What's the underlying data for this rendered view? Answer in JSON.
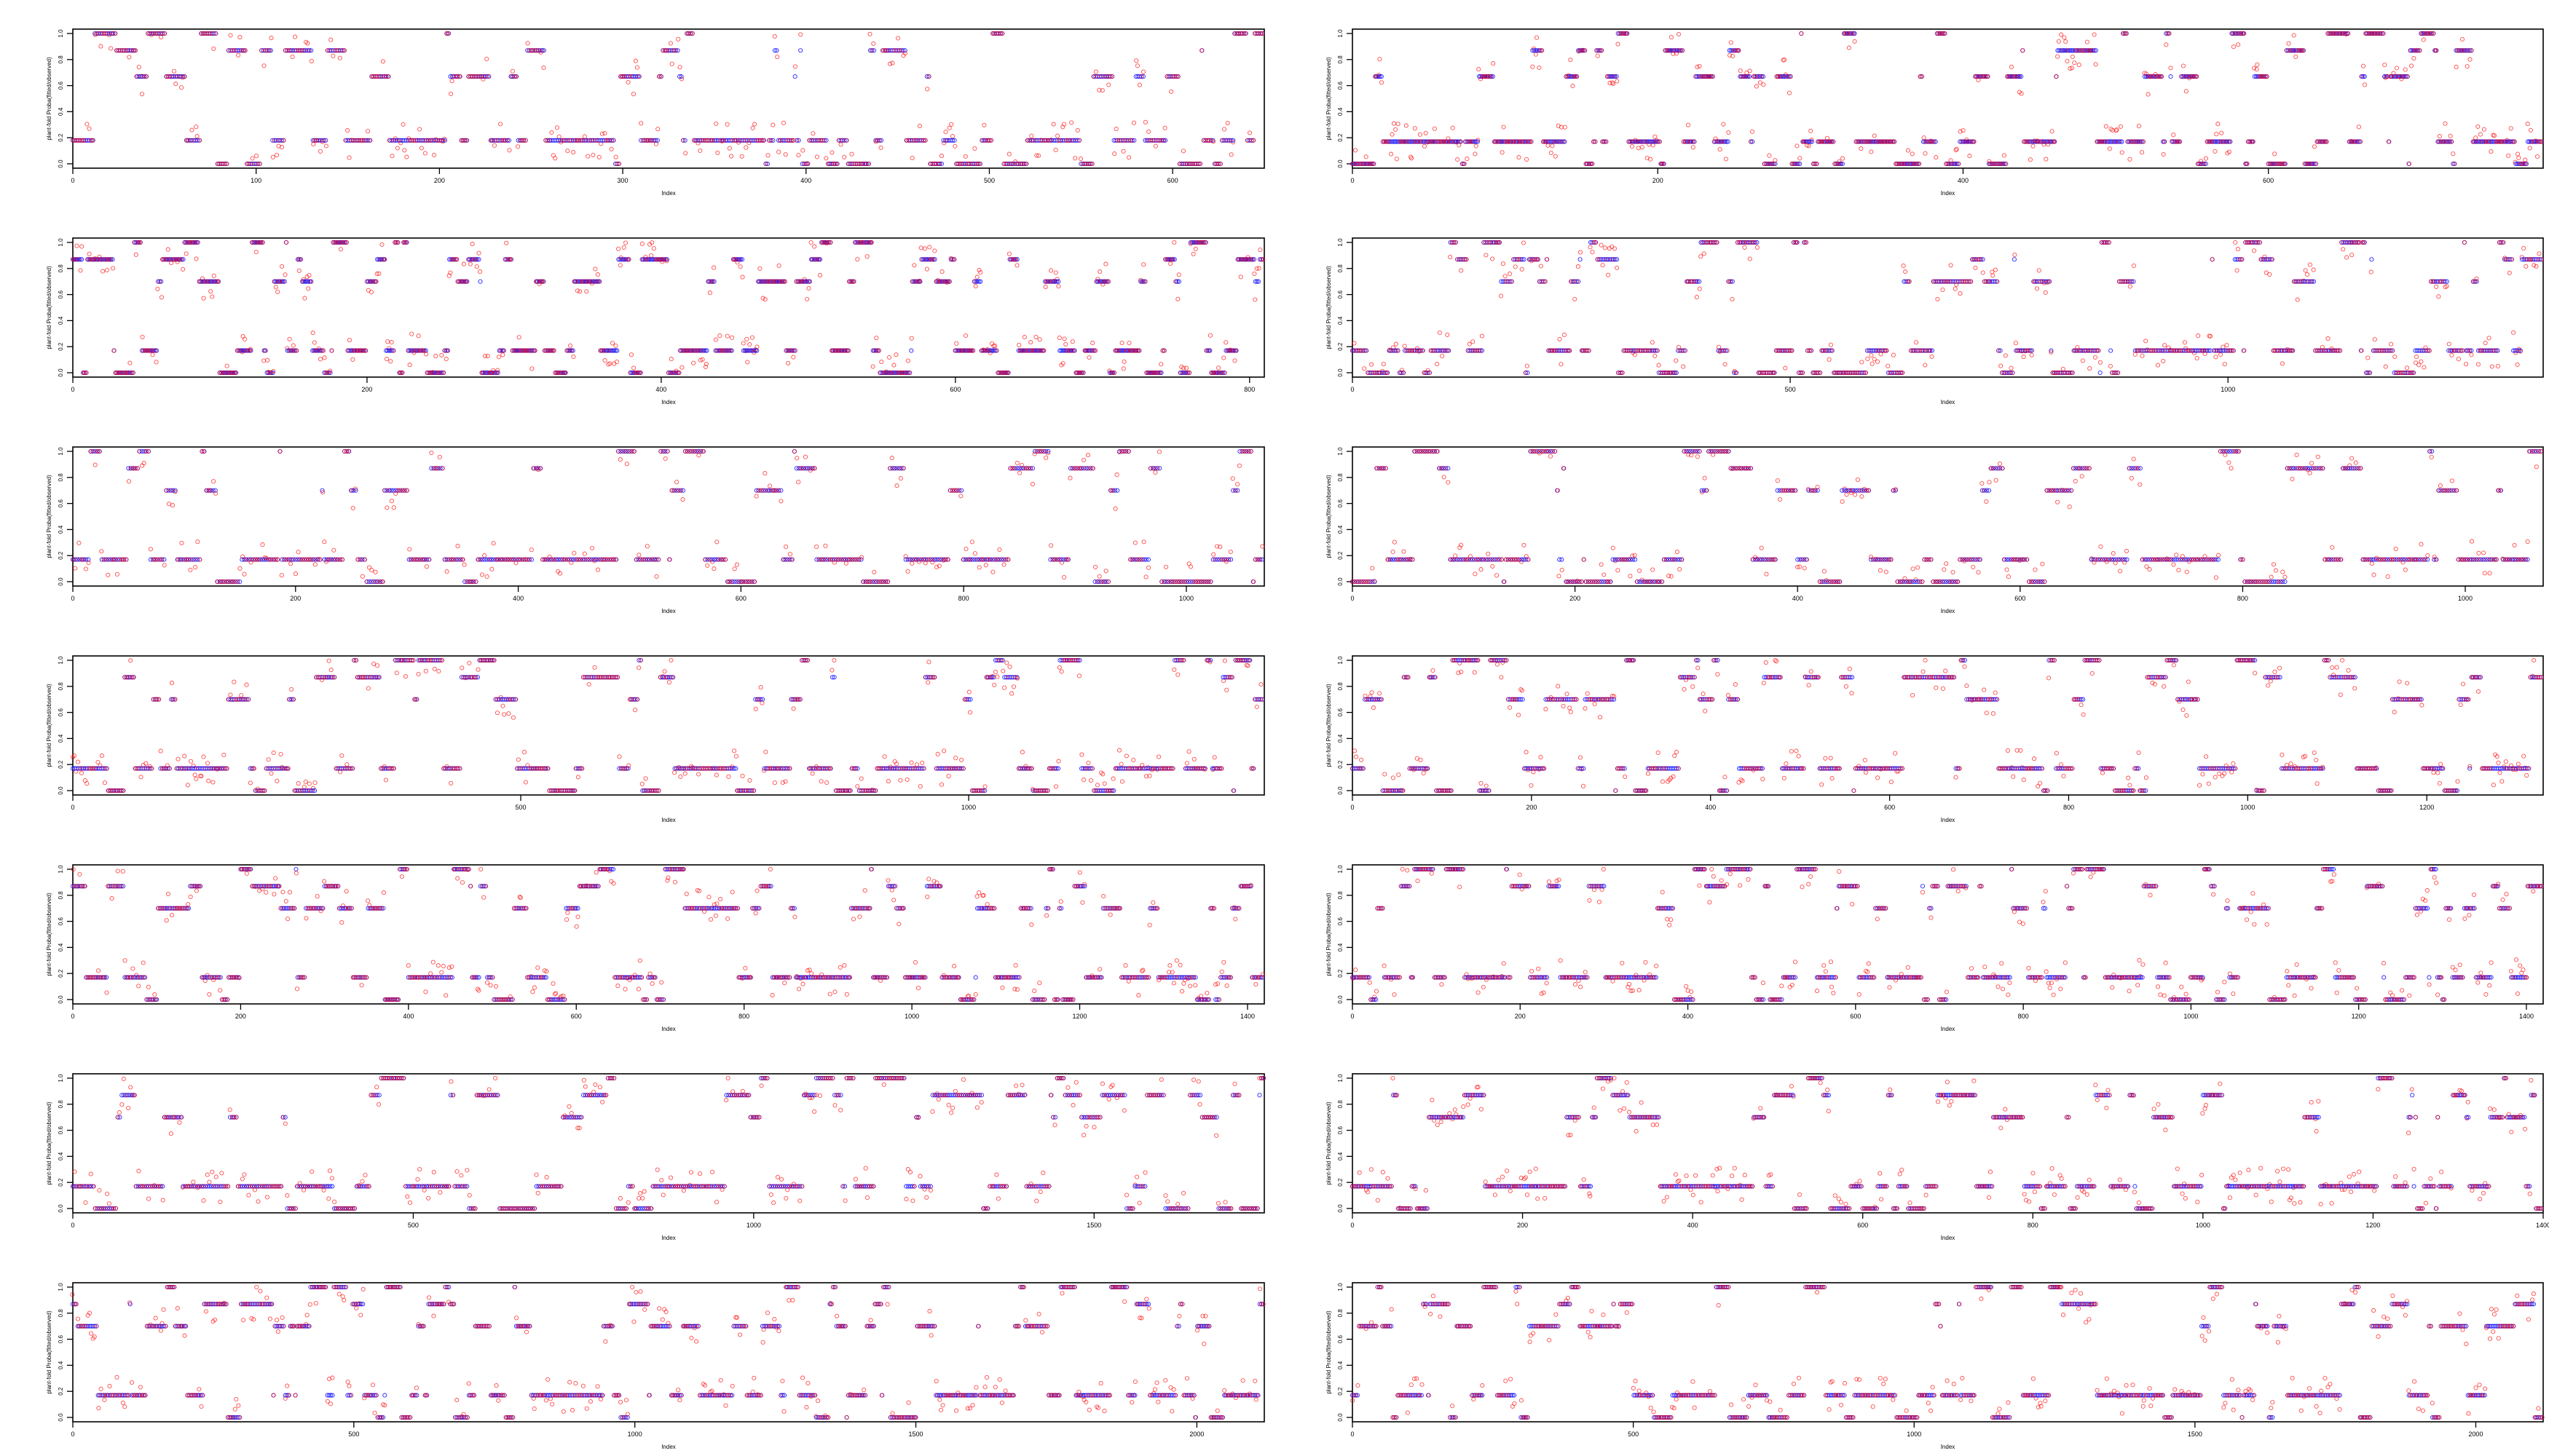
{
  "figure": {
    "panel_order": "row-major, 7 rows x 2 columns",
    "series_colors": {
      "observed": "#0000ff",
      "fitted": "#ff0000"
    },
    "point_style": "open circles"
  },
  "chart_data": [
    {
      "type": "scatter",
      "xlabel": "Index",
      "ylabel": "plant-fold Proba(fitted/observed)",
      "xlim": [
        0,
        650
      ],
      "xticks": [
        0,
        100,
        200,
        300,
        400,
        500,
        600
      ],
      "ylim": [
        0,
        1
      ],
      "yticks": [
        0.0,
        0.2,
        0.4,
        0.6,
        0.8,
        1.0
      ],
      "ytick_labels": [
        "0.0",
        "0.2",
        "0.4",
        "0.6",
        "0.8",
        "1.0"
      ],
      "grid": false,
      "legend": "none",
      "series": [
        {
          "color": "#0000ff",
          "levels": [
            0.0,
            0.18,
            0.67,
            0.87,
            1.0
          ]
        },
        {
          "color": "#ff0000",
          "levels": [
            0.0,
            0.18,
            0.67,
            0.87,
            1.0
          ]
        }
      ],
      "n": 650
    },
    {
      "type": "scatter",
      "xlabel": "Index",
      "ylabel": "plant-fold Proba(fitted/observed)",
      "xlim": [
        0,
        780
      ],
      "xticks": [
        0,
        200,
        400,
        600
      ],
      "ylim": [
        0,
        1
      ],
      "yticks": [
        0.0,
        0.2,
        0.4,
        0.6,
        0.8,
        1.0
      ],
      "ytick_labels": [
        "0.0",
        "0.2",
        "0.4",
        "0.6",
        "0.8",
        "1.0"
      ],
      "grid": false,
      "legend": "none",
      "series": [
        {
          "color": "#0000ff",
          "levels": [
            0.0,
            0.17,
            0.67,
            0.87,
            1.0
          ]
        },
        {
          "color": "#ff0000",
          "levels": [
            0.0,
            0.17,
            0.67,
            0.87,
            1.0
          ]
        }
      ],
      "n": 780
    },
    {
      "type": "scatter",
      "xlabel": "Index",
      "ylabel": "plant-fold Proba(fitted/observed)",
      "xlim": [
        0,
        810
      ],
      "xticks": [
        0,
        200,
        400,
        600,
        800
      ],
      "ylim": [
        0,
        1
      ],
      "yticks": [
        0.0,
        0.2,
        0.4,
        0.6,
        0.8,
        1.0
      ],
      "ytick_labels": [
        "0.0",
        "0.2",
        "0.4",
        "0.6",
        "0.8",
        "1.0"
      ],
      "grid": false,
      "legend": "none",
      "series": [
        {
          "color": "#0000ff",
          "levels": [
            0.0,
            0.17,
            0.7,
            0.87,
            1.0
          ]
        },
        {
          "color": "#ff0000",
          "levels": [
            0.0,
            0.17,
            0.7,
            0.87,
            1.0
          ]
        }
      ],
      "n": 810
    },
    {
      "type": "scatter",
      "xlabel": "Index",
      "ylabel": "plant-fold Proba(fitted/observed)",
      "xlim": [
        0,
        1360
      ],
      "xticks": [
        0,
        500,
        1000
      ],
      "ylim": [
        0,
        1
      ],
      "yticks": [
        0.0,
        0.2,
        0.4,
        0.6,
        0.8,
        1.0
      ],
      "ytick_labels": [
        "0.0",
        "0.2",
        "0.4",
        "0.6",
        "0.8",
        "1.0"
      ],
      "grid": false,
      "legend": "none",
      "series": [
        {
          "color": "#0000ff",
          "levels": [
            0.0,
            0.17,
            0.7,
            0.87,
            1.0
          ]
        },
        {
          "color": "#ff0000",
          "levels": [
            0.0,
            0.17,
            0.7,
            0.87,
            1.0
          ]
        }
      ],
      "n": 1360
    },
    {
      "type": "scatter",
      "xlabel": "Index",
      "ylabel": "plant-fold Proba(fitted/observed)",
      "xlim": [
        0,
        1070
      ],
      "xticks": [
        0,
        200,
        400,
        600,
        800,
        1000
      ],
      "ylim": [
        0,
        1
      ],
      "yticks": [
        0.0,
        0.2,
        0.4,
        0.6,
        0.8,
        1.0
      ],
      "ytick_labels": [
        "0.0",
        "0.2",
        "0.4",
        "0.6",
        "0.8",
        "1.0"
      ],
      "grid": false,
      "legend": "none",
      "series": [
        {
          "color": "#0000ff",
          "levels": [
            0.0,
            0.17,
            0.7,
            0.87,
            1.0
          ]
        },
        {
          "color": "#ff0000",
          "levels": [
            0.0,
            0.17,
            0.7,
            0.87,
            1.0
          ]
        }
      ],
      "n": 1070
    },
    {
      "type": "scatter",
      "xlabel": "Index",
      "ylabel": "plant-fold Proba(fitted/observed)",
      "xlim": [
        0,
        1070
      ],
      "xticks": [
        0,
        200,
        400,
        600,
        800,
        1000
      ],
      "ylim": [
        0,
        1
      ],
      "yticks": [
        0.0,
        0.2,
        0.4,
        0.6,
        0.8,
        1.0
      ],
      "ytick_labels": [
        "0.0",
        "0.2",
        "0.4",
        "0.6",
        "0.8",
        "1.0"
      ],
      "grid": false,
      "legend": "none",
      "series": [
        {
          "color": "#0000ff",
          "levels": [
            0.0,
            0.17,
            0.7,
            0.87,
            1.0
          ]
        },
        {
          "color": "#ff0000",
          "levels": [
            0.0,
            0.17,
            0.7,
            0.87,
            1.0
          ]
        }
      ],
      "n": 1070
    },
    {
      "type": "scatter",
      "xlabel": "Index",
      "ylabel": "plant-fold Proba(fitted/observed)",
      "xlim": [
        0,
        1330
      ],
      "xticks": [
        0,
        500,
        1000
      ],
      "ylim": [
        0,
        1
      ],
      "yticks": [
        0.0,
        0.2,
        0.4,
        0.6,
        0.8,
        1.0
      ],
      "ytick_labels": [
        "0.0",
        "0.2",
        "0.4",
        "0.6",
        "0.8",
        "1.0"
      ],
      "grid": false,
      "legend": "none",
      "series": [
        {
          "color": "#0000ff",
          "levels": [
            0.0,
            0.17,
            0.7,
            0.87,
            1.0
          ]
        },
        {
          "color": "#ff0000",
          "levels": [
            0.0,
            0.17,
            0.7,
            0.87,
            1.0
          ]
        }
      ],
      "n": 1330
    },
    {
      "type": "scatter",
      "xlabel": "Index",
      "ylabel": "plant-fold Proba(fitted/observed)",
      "xlim": [
        0,
        1330
      ],
      "xticks": [
        0,
        200,
        400,
        600,
        800,
        1000,
        1200
      ],
      "ylim": [
        0,
        1
      ],
      "yticks": [
        0.0,
        0.2,
        0.4,
        0.6,
        0.8,
        1.0
      ],
      "ytick_labels": [
        "0.0",
        "0.2",
        "0.4",
        "0.6",
        "0.8",
        "1.0"
      ],
      "grid": false,
      "legend": "none",
      "series": [
        {
          "color": "#0000ff",
          "levels": [
            0.0,
            0.17,
            0.7,
            0.87,
            1.0
          ]
        },
        {
          "color": "#ff0000",
          "levels": [
            0.0,
            0.17,
            0.7,
            0.87,
            1.0
          ]
        }
      ],
      "n": 1330
    },
    {
      "type": "scatter",
      "xlabel": "Index",
      "ylabel": "plant-fold Proba(fitted/observed)",
      "xlim": [
        0,
        1420
      ],
      "xticks": [
        0,
        200,
        400,
        600,
        800,
        1000,
        1200,
        1400
      ],
      "ylim": [
        0,
        1
      ],
      "yticks": [
        0.0,
        0.2,
        0.4,
        0.6,
        0.8,
        1.0
      ],
      "ytick_labels": [
        "0.0",
        "0.2",
        "0.4",
        "0.6",
        "0.8",
        "1.0"
      ],
      "grid": false,
      "legend": "none",
      "series": [
        {
          "color": "#0000ff",
          "levels": [
            0.0,
            0.17,
            0.7,
            0.87,
            1.0
          ]
        },
        {
          "color": "#ff0000",
          "levels": [
            0.0,
            0.17,
            0.7,
            0.87,
            1.0
          ]
        }
      ],
      "n": 1420
    },
    {
      "type": "scatter",
      "xlabel": "Index",
      "ylabel": "plant-fold Proba(fitted/observed)",
      "xlim": [
        0,
        1420
      ],
      "xticks": [
        0,
        200,
        400,
        600,
        800,
        1000,
        1200,
        1400
      ],
      "ylim": [
        0,
        1
      ],
      "yticks": [
        0.0,
        0.2,
        0.4,
        0.6,
        0.8,
        1.0
      ],
      "ytick_labels": [
        "0.0",
        "0.2",
        "0.4",
        "0.6",
        "0.8",
        "1.0"
      ],
      "grid": false,
      "legend": "none",
      "series": [
        {
          "color": "#0000ff",
          "levels": [
            0.0,
            0.17,
            0.7,
            0.87,
            1.0
          ]
        },
        {
          "color": "#ff0000",
          "levels": [
            0.0,
            0.17,
            0.7,
            0.87,
            1.0
          ]
        }
      ],
      "n": 1420
    },
    {
      "type": "scatter",
      "xlabel": "Index",
      "ylabel": "plant-fold Proba(fitted/observed)",
      "xlim": [
        0,
        1750
      ],
      "xticks": [
        0,
        500,
        1000,
        1500
      ],
      "ylim": [
        0,
        1
      ],
      "yticks": [
        0.0,
        0.2,
        0.4,
        0.6,
        0.8,
        1.0
      ],
      "ytick_labels": [
        "0.0",
        "0.2",
        "0.4",
        "0.6",
        "0.8",
        "1.0"
      ],
      "grid": false,
      "legend": "none",
      "series": [
        {
          "color": "#0000ff",
          "levels": [
            0.0,
            0.17,
            0.7,
            0.87,
            1.0
          ]
        },
        {
          "color": "#ff0000",
          "levels": [
            0.0,
            0.17,
            0.7,
            0.87,
            1.0
          ]
        }
      ],
      "n": 1750
    },
    {
      "type": "scatter",
      "xlabel": "Index",
      "ylabel": "plant-fold Proba(fitted/observed)",
      "xlim": [
        0,
        1400
      ],
      "xticks": [
        0,
        200,
        400,
        600,
        800,
        1000,
        1200,
        1400
      ],
      "ylim": [
        0,
        1
      ],
      "yticks": [
        0.0,
        0.2,
        0.4,
        0.6,
        0.8,
        1.0
      ],
      "ytick_labels": [
        "0.0",
        "0.2",
        "0.4",
        "0.6",
        "0.8",
        "1.0"
      ],
      "grid": false,
      "legend": "none",
      "series": [
        {
          "color": "#0000ff",
          "levels": [
            0.0,
            0.17,
            0.7,
            0.87,
            1.0
          ]
        },
        {
          "color": "#ff0000",
          "levels": [
            0.0,
            0.17,
            0.7,
            0.87,
            1.0
          ]
        }
      ],
      "n": 1400
    },
    {
      "type": "scatter",
      "xlabel": "Index",
      "ylabel": "plant-fold Proba(fitted/observed)",
      "xlim": [
        0,
        2120
      ],
      "xticks": [
        0,
        500,
        1000,
        1500,
        2000
      ],
      "ylim": [
        0,
        1
      ],
      "yticks": [
        0.0,
        0.2,
        0.4,
        0.6,
        0.8,
        1.0
      ],
      "ytick_labels": [
        "0.0",
        "0.2",
        "0.4",
        "0.6",
        "0.8",
        "1.0"
      ],
      "grid": false,
      "legend": "none",
      "series": [
        {
          "color": "#0000ff",
          "levels": [
            0.0,
            0.17,
            0.7,
            0.87,
            1.0
          ]
        },
        {
          "color": "#ff0000",
          "levels": [
            0.0,
            0.17,
            0.7,
            0.87,
            1.0
          ]
        }
      ],
      "n": 2120
    },
    {
      "type": "scatter",
      "xlabel": "Index",
      "ylabel": "plant-fold Proba(fitted/observed)",
      "xlim": [
        0,
        2120
      ],
      "xticks": [
        0,
        500,
        1000,
        1500,
        2000
      ],
      "ylim": [
        0,
        1
      ],
      "yticks": [
        0.0,
        0.2,
        0.4,
        0.6,
        0.8,
        1.0
      ],
      "ytick_labels": [
        "0.0",
        "0.2",
        "0.4",
        "0.6",
        "0.8",
        "1.0"
      ],
      "grid": false,
      "legend": "none",
      "series": [
        {
          "color": "#0000ff",
          "levels": [
            0.0,
            0.17,
            0.7,
            0.87,
            1.0
          ]
        },
        {
          "color": "#ff0000",
          "levels": [
            0.0,
            0.17,
            0.7,
            0.87,
            1.0
          ]
        }
      ],
      "n": 2120
    }
  ]
}
